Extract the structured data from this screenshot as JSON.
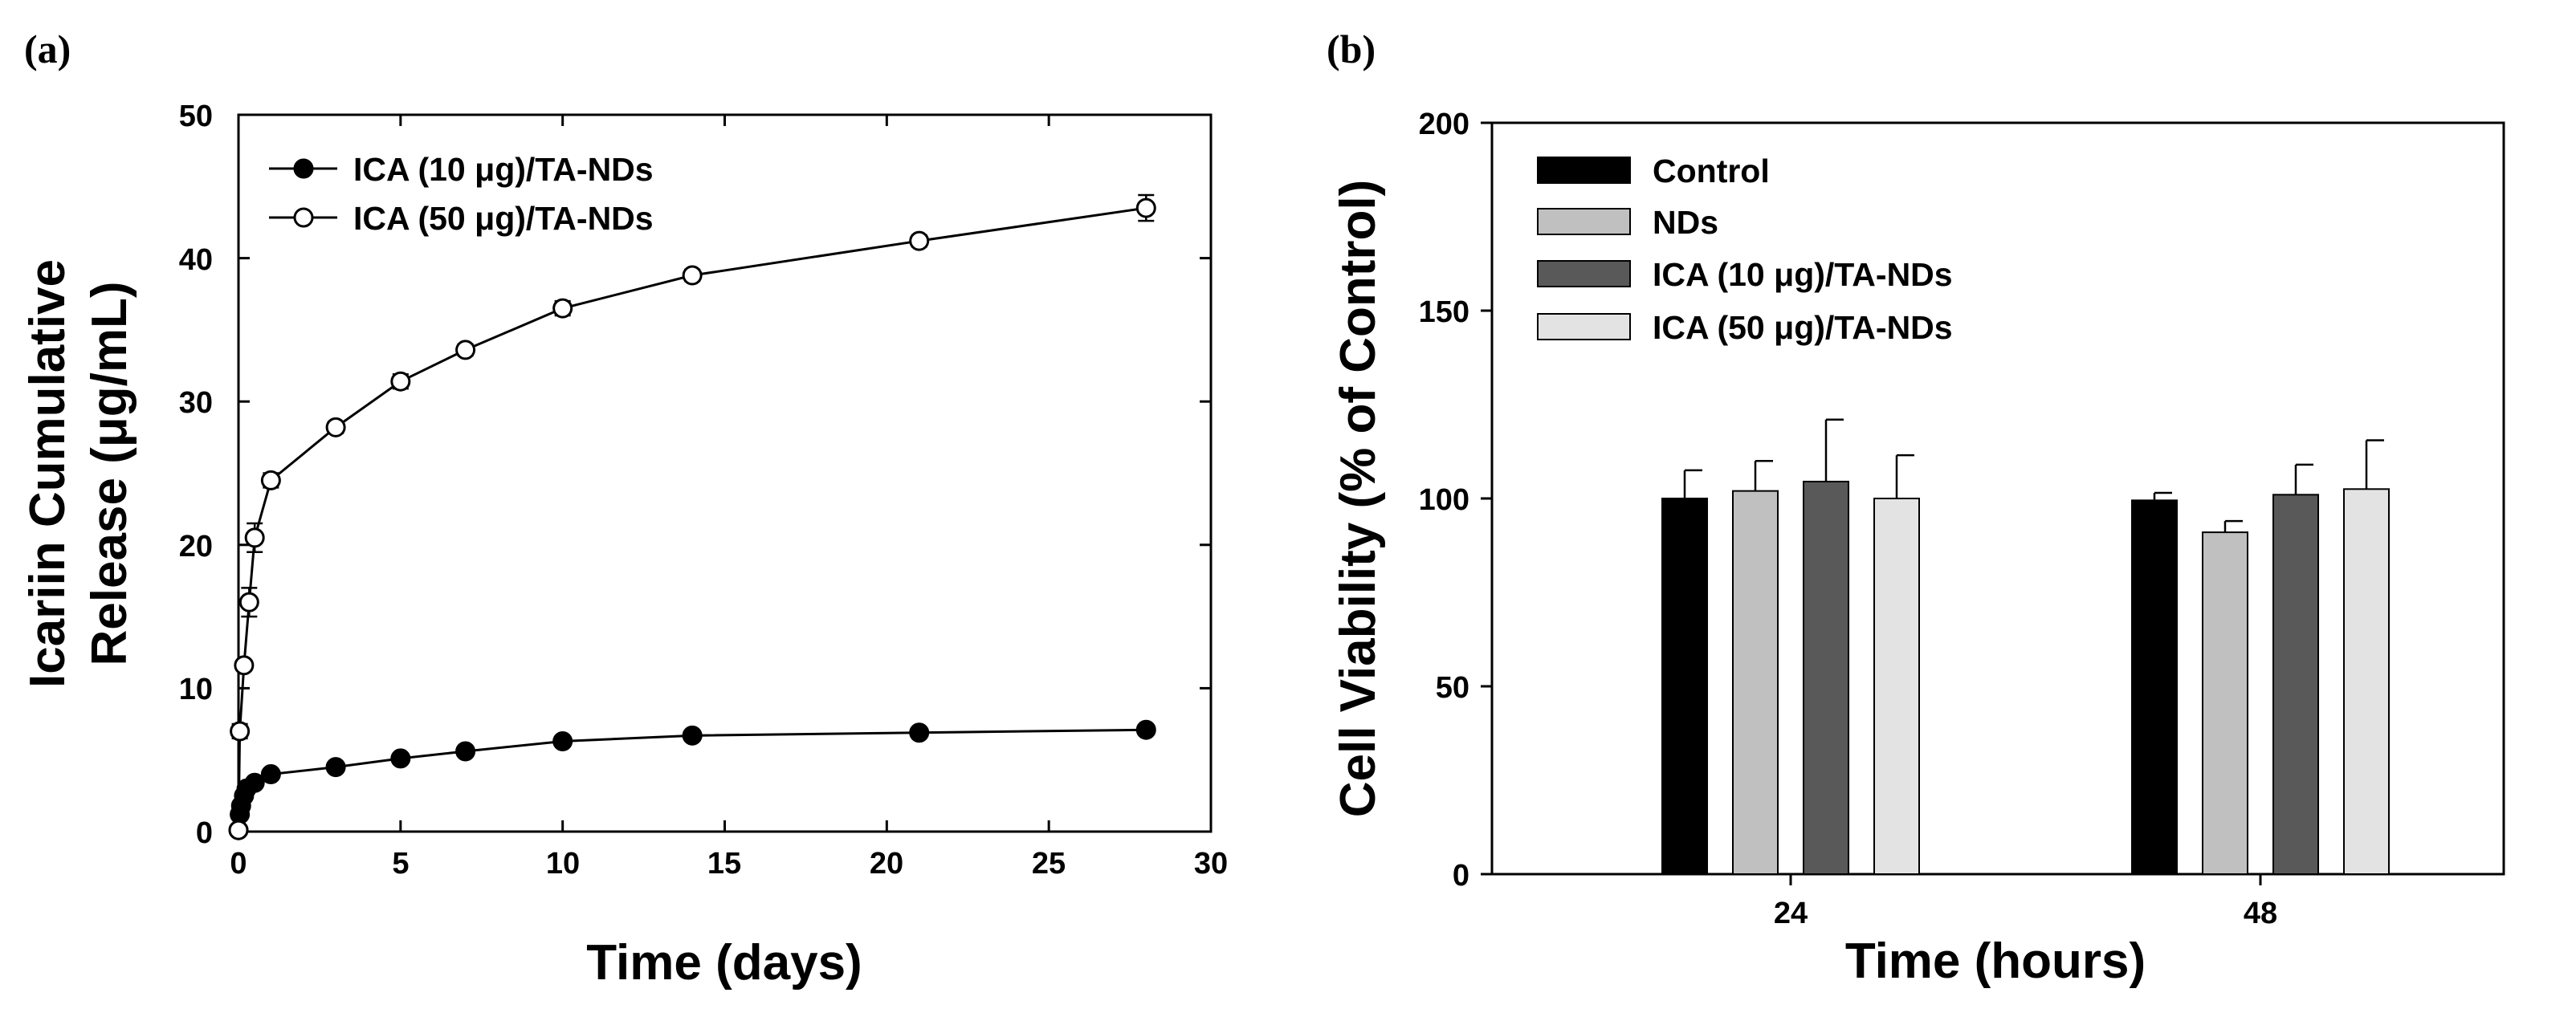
{
  "chart_data": [
    {
      "panel_label": "(a)",
      "type": "line",
      "xlabel": "Time (days)",
      "ylabel_line1": "Icariin Cumulative",
      "ylabel_line2": "Release (μg/mL)",
      "xlim": [
        0,
        30
      ],
      "ylim": [
        0,
        50
      ],
      "xticks": [
        "0",
        "5",
        "10",
        "15",
        "20",
        "25",
        "30"
      ],
      "yticks": [
        "0",
        "10",
        "20",
        "30",
        "40",
        "50"
      ],
      "legend_position": "top-left",
      "series": [
        {
          "name": "ICA (10 μg)/TA-NDs",
          "marker": "filled-circle",
          "x": [
            0,
            0.04,
            0.08,
            0.17,
            0.25,
            0.5,
            1,
            3,
            5,
            7,
            10,
            14,
            21,
            28
          ],
          "y": [
            0.1,
            1.2,
            1.8,
            2.5,
            3.0,
            3.4,
            4.0,
            4.5,
            5.1,
            5.6,
            6.3,
            6.7,
            6.9,
            7.1
          ],
          "error": [
            0.1,
            0.1,
            0.1,
            0.1,
            0.1,
            0.2,
            0.2,
            0.2,
            0.3,
            0.2,
            0.2,
            0.2,
            0.2,
            0.2
          ]
        },
        {
          "name": "ICA (50 μg)/TA-NDs",
          "marker": "open-circle",
          "x": [
            0,
            0.04,
            0.17,
            0.33,
            0.5,
            1,
            3,
            5,
            7,
            10,
            14,
            21,
            28
          ],
          "y": [
            0.1,
            7.0,
            11.6,
            16.0,
            20.5,
            24.5,
            28.2,
            31.4,
            33.6,
            36.5,
            38.8,
            41.2,
            43.5
          ],
          "error": [
            0.1,
            0.5,
            0.3,
            1.0,
            1.0,
            0.5,
            0.4,
            0.5,
            0.4,
            0.5,
            0.4,
            0.4,
            0.9
          ]
        }
      ]
    },
    {
      "panel_label": "(b)",
      "type": "bar",
      "xlabel": "Time (hours)",
      "ylabel": "Cell Viability (% of Control)",
      "categories": [
        "24",
        "48"
      ],
      "ylim": [
        0,
        200
      ],
      "yticks": [
        "0",
        "50",
        "100",
        "150",
        "200"
      ],
      "legend_position": "top-left",
      "series": [
        {
          "name": "Control",
          "color": "#000000",
          "values": [
            100,
            99.5
          ],
          "error": [
            7.5,
            2.0
          ]
        },
        {
          "name": "NDs",
          "color": "#c0c0c0",
          "values": [
            102,
            91
          ],
          "error": [
            8.0,
            3.0
          ]
        },
        {
          "name": "ICA (10 μg)/TA-NDs",
          "color": "#595959",
          "values": [
            104.5,
            101
          ],
          "error": [
            16.5,
            8.0
          ]
        },
        {
          "name": "ICA (50 μg)/TA-NDs",
          "color": "#e3e3e3",
          "values": [
            100,
            102.5
          ],
          "error": [
            11.5,
            13.0
          ]
        }
      ]
    }
  ]
}
